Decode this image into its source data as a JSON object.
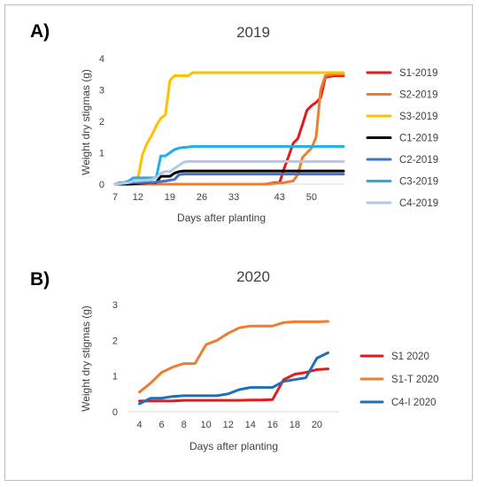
{
  "chart_data": [
    {
      "panel_label": "A)",
      "type": "line",
      "title": "2019",
      "xlabel": "Days after planting",
      "ylabel": "Weight dry stigmas (g)",
      "xlim": [
        7,
        57
      ],
      "ylim": [
        0,
        4
      ],
      "xticks": [
        7,
        12,
        19,
        26,
        33,
        43,
        50
      ],
      "xtick_positions": [
        7,
        12,
        19,
        26,
        33,
        43,
        50
      ],
      "yticks": [
        0,
        1,
        2,
        3,
        4
      ],
      "grid": false,
      "legend_position": "right",
      "series": [
        {
          "name": "S1-2019",
          "color": "#e31a1c",
          "x": [
            7,
            10,
            15,
            20,
            25,
            30,
            35,
            38,
            40,
            42,
            43,
            44,
            45,
            46,
            47,
            48,
            49,
            50,
            51,
            52,
            53,
            55,
            57
          ],
          "y": [
            0,
            0,
            0,
            0,
            0,
            0,
            0,
            0,
            0,
            0.05,
            0.05,
            0.5,
            0.9,
            1.3,
            1.45,
            1.9,
            2.35,
            2.5,
            2.6,
            2.75,
            3.4,
            3.45,
            3.45
          ]
        },
        {
          "name": "S2-2019",
          "color": "#ed7d31",
          "x": [
            7,
            10,
            15,
            20,
            25,
            30,
            35,
            40,
            44,
            46,
            47,
            48,
            49,
            50,
            51,
            52,
            53,
            55,
            57
          ],
          "y": [
            0,
            0,
            0,
            0,
            0,
            0,
            0,
            0,
            0.05,
            0.1,
            0.3,
            0.85,
            1.0,
            1.15,
            1.5,
            3.0,
            3.45,
            3.5,
            3.5
          ]
        },
        {
          "name": "S3-2019",
          "color": "#ffc000",
          "x": [
            7,
            8,
            9,
            10,
            11,
            12,
            13,
            14,
            15,
            16,
            17,
            18,
            19,
            20,
            21,
            22,
            23,
            24,
            25,
            26,
            57
          ],
          "y": [
            0,
            0.02,
            0.05,
            0.1,
            0.2,
            0.2,
            0.95,
            1.3,
            1.55,
            1.85,
            2.1,
            2.2,
            3.3,
            3.45,
            3.45,
            3.45,
            3.45,
            3.55,
            3.55,
            3.55,
            3.55
          ]
        },
        {
          "name": "C1-2019",
          "color": "#000000",
          "x": [
            7,
            10,
            15,
            16,
            17,
            18,
            19,
            20,
            21,
            22,
            57
          ],
          "y": [
            0,
            0,
            0.05,
            0.05,
            0.25,
            0.25,
            0.25,
            0.35,
            0.4,
            0.42,
            0.42
          ]
        },
        {
          "name": "C2-2019",
          "color": "#4472c4",
          "x": [
            7,
            10,
            15,
            18,
            20,
            21,
            22,
            57
          ],
          "y": [
            0,
            0.05,
            0.05,
            0.1,
            0.15,
            0.3,
            0.32,
            0.32
          ]
        },
        {
          "name": "C3-2019",
          "color": "#1cb0e6",
          "x": [
            7,
            8,
            9,
            10,
            11,
            12,
            13,
            14,
            15,
            16,
            17,
            18,
            19,
            20,
            21,
            22,
            23,
            24,
            57
          ],
          "y": [
            0,
            0.05,
            0.05,
            0.1,
            0.2,
            0.2,
            0.2,
            0.2,
            0.2,
            0.2,
            0.9,
            0.9,
            1.0,
            1.1,
            1.15,
            1.17,
            1.18,
            1.2,
            1.2
          ]
        },
        {
          "name": "C4-2019",
          "color": "#b4c7e7",
          "x": [
            7,
            10,
            11,
            12,
            15,
            16,
            17,
            18,
            19,
            20,
            21,
            22,
            23,
            24,
            57
          ],
          "y": [
            0,
            0.05,
            0.1,
            0.1,
            0.15,
            0.2,
            0.35,
            0.4,
            0.4,
            0.5,
            0.6,
            0.7,
            0.72,
            0.72,
            0.72
          ]
        }
      ]
    },
    {
      "panel_label": "B)",
      "type": "line",
      "title": "2020",
      "xlabel": "Days after planting",
      "ylabel": "Weight dry stigmas (g)",
      "xlim": [
        3,
        22
      ],
      "ylim": [
        0,
        3
      ],
      "xticks": [
        4,
        6,
        8,
        10,
        12,
        14,
        16,
        18,
        20
      ],
      "yticks": [
        0,
        1,
        2,
        3
      ],
      "grid": false,
      "legend_position": "right",
      "series": [
        {
          "name": "S1 2020",
          "color": "#e31a1c",
          "x": [
            4,
            5,
            6,
            7,
            8,
            9,
            10,
            11,
            12,
            13,
            14,
            15,
            16,
            17,
            18,
            19,
            20,
            21
          ],
          "y": [
            0.3,
            0.3,
            0.3,
            0.3,
            0.32,
            0.32,
            0.32,
            0.32,
            0.32,
            0.32,
            0.33,
            0.33,
            0.34,
            0.9,
            1.05,
            1.1,
            1.18,
            1.2
          ]
        },
        {
          "name": "S1-T 2020",
          "color": "#ed7d31",
          "x": [
            4,
            5,
            6,
            7,
            8,
            9,
            10,
            11,
            12,
            13,
            14,
            15,
            16,
            17,
            18,
            19,
            20,
            21
          ],
          "y": [
            0.55,
            0.8,
            1.1,
            1.25,
            1.35,
            1.35,
            1.88,
            2.0,
            2.2,
            2.35,
            2.4,
            2.4,
            2.4,
            2.5,
            2.52,
            2.52,
            2.52,
            2.53
          ]
        },
        {
          "name": "C4-I 2020",
          "color": "#1f6fb5",
          "x": [
            4,
            5,
            6,
            7,
            8,
            9,
            10,
            11,
            12,
            13,
            14,
            15,
            16,
            17,
            18,
            19,
            20,
            21
          ],
          "y": [
            0.22,
            0.38,
            0.38,
            0.43,
            0.45,
            0.45,
            0.45,
            0.45,
            0.5,
            0.62,
            0.68,
            0.68,
            0.68,
            0.85,
            0.9,
            0.95,
            1.5,
            1.65
          ]
        }
      ]
    }
  ]
}
